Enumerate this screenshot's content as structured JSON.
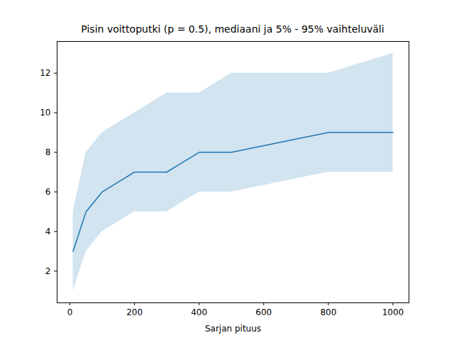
{
  "chart_data": {
    "type": "line",
    "title": "Pisin voittoputki (p = 0.5), mediaani ja 5% - 95% vaihteluväli",
    "x_label": "Sarjan pituus",
    "x": [
      10,
      50,
      100,
      200,
      300,
      400,
      500,
      800,
      1000
    ],
    "values": [
      3,
      5,
      6,
      7,
      7,
      8,
      8,
      9,
      9
    ],
    "lower": [
      1,
      3,
      4,
      5,
      5,
      6,
      6,
      7,
      7
    ],
    "upper": [
      5,
      8,
      9,
      10,
      11,
      11,
      12,
      12,
      13
    ],
    "color": "#1f77b4",
    "xlim": [
      -39.5,
      1049.5
    ],
    "xticks": [
      0,
      200,
      400,
      600,
      800,
      1000
    ],
    "ylim": [
      0.4,
      13.6
    ],
    "yticks": [
      2,
      4,
      6,
      8,
      10,
      12
    ],
    "grid": false
  }
}
